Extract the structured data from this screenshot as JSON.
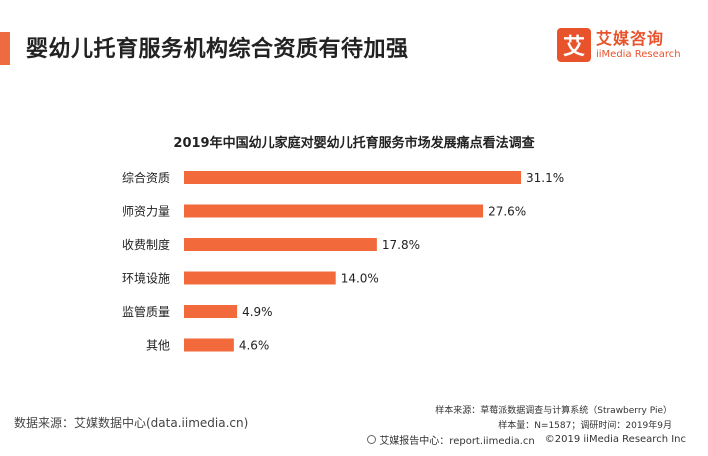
{
  "header": {
    "title": "婴幼儿托育服务机构综合资质有待加强",
    "accent_color": "#EE6A3F"
  },
  "logo": {
    "mark": "艾",
    "name_cn": "艾媒咨询",
    "name_en": "iiMedia Research",
    "color": "#E8532B"
  },
  "chart_data": {
    "type": "bar",
    "orientation": "horizontal",
    "title": "2019年中国幼儿家庭对婴幼儿托育服务市场发展痛点看法调查",
    "categories": [
      "综合资质",
      "师资力量",
      "收费制度",
      "环境设施",
      "监管质量",
      "其他"
    ],
    "values": [
      31.1,
      27.6,
      17.8,
      14.0,
      4.9,
      4.6
    ],
    "value_labels": [
      "31.1%",
      "27.6%",
      "17.8%",
      "14.0%",
      "4.9%",
      "4.6%"
    ],
    "unit": "%",
    "bar_color": "#F26A3B",
    "xlim": [
      0,
      31.1
    ],
    "grid": false,
    "legend": "none"
  },
  "sources": {
    "left": "数据来源：艾媒数据中心(data.iimedia.cn)",
    "sample_source": "样本来源：草莓派数据调查与计算系统（Strawberry Pie）",
    "sample_info": "样本量：N=1587；调研时间：2019年9月",
    "footer_report": "艾媒报告中心：report.iimedia.cn",
    "footer_copyright": "©2019  iiMedia Research  Inc"
  }
}
